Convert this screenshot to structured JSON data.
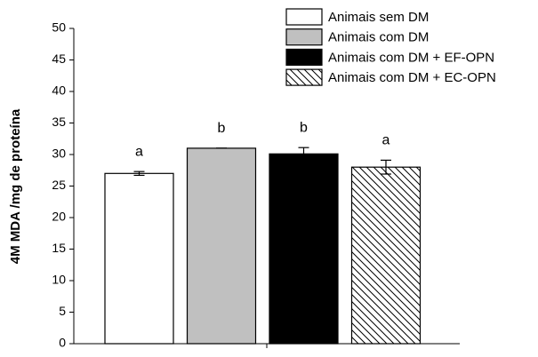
{
  "chart_data": {
    "type": "bar",
    "ylabel": "4M MDA /mg de proteína",
    "categories": [
      "Animais sem DM",
      "Animais com DM",
      "Animais com DM + EF-OPN",
      "Animais com DM + EC-OPN"
    ],
    "values": [
      27.0,
      31.0,
      30.1,
      28.0
    ],
    "errors": [
      0.3,
      0.0,
      1.0,
      1.1
    ],
    "significance": [
      "a",
      "b",
      "b",
      "a"
    ],
    "colors": [
      "#ffffff",
      "#c0c0c0",
      "#000000",
      "#ffffff"
    ],
    "patterns": [
      "solid",
      "solid",
      "solid",
      "hatch"
    ],
    "ylim": [
      0,
      50
    ],
    "yticks": [
      0,
      5,
      10,
      15,
      20,
      25,
      30,
      35,
      40,
      45,
      50
    ]
  }
}
